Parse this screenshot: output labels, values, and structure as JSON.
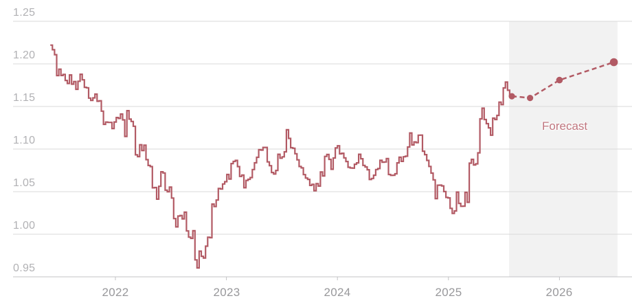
{
  "chart_data": {
    "type": "line",
    "description": "Exchange rate weekly history with forecast",
    "ylim": [
      0.95,
      1.25
    ],
    "xlim_years": [
      2021.41,
      2026.65
    ],
    "grid": true,
    "y_axis": {
      "min": 0.95,
      "max": 1.25,
      "tick_step": 0.05,
      "tick_labels": [
        "1.25",
        "1.20",
        "1.15",
        "1.10",
        "1.05",
        "1.00",
        "0.95"
      ]
    },
    "x_axis": {
      "tick_labels": [
        "2022",
        "2023",
        "2024",
        "2025",
        "2026"
      ],
      "tick_values": [
        2022,
        2023,
        2024,
        2025,
        2026
      ]
    },
    "series": [
      {
        "name": "historical-rate",
        "style": "step",
        "start_year": 2021.4136,
        "interval_years": 0.019157,
        "values": [
          1.222,
          1.2166,
          1.2108,
          1.1863,
          1.1938,
          1.1864,
          1.1877,
          1.1806,
          1.177,
          1.187,
          1.1762,
          1.1793,
          1.1702,
          1.1796,
          1.1878,
          1.1813,
          1.1725,
          1.1719,
          1.1598,
          1.1571,
          1.1601,
          1.1645,
          1.1561,
          1.1567,
          1.1445,
          1.129,
          1.1317,
          1.1313,
          1.1313,
          1.124,
          1.1318,
          1.137,
          1.136,
          1.1411,
          1.1343,
          1.1148,
          1.1451,
          1.1352,
          1.1324,
          1.1268,
          1.0932,
          1.0911,
          1.1051,
          1.0982,
          1.1046,
          1.0876,
          1.0807,
          1.0794,
          1.0545,
          1.0548,
          1.0412,
          1.0563,
          1.0733,
          1.0719,
          1.0518,
          1.0499,
          1.0553,
          1.0425,
          1.0184,
          1.0086,
          1.0214,
          1.022,
          1.0181,
          1.0259,
          1.0039,
          0.9966,
          0.9952,
          1.0041,
          0.9699,
          0.9605,
          0.9802,
          0.9741,
          0.9721,
          0.986,
          0.9965,
          0.996,
          1.0354,
          1.0325,
          1.0402,
          1.0537,
          1.0531,
          1.059,
          1.0617,
          1.0702,
          1.0648,
          1.083,
          1.0855,
          1.0867,
          1.0794,
          1.0679,
          1.0695,
          1.0546,
          1.0632,
          1.0645,
          1.0665,
          1.076,
          1.0839,
          1.0903,
          1.0993,
          1.0988,
          1.1019,
          1.1019,
          1.0849,
          1.0805,
          1.0725,
          1.0707,
          1.0749,
          1.0939,
          1.0893,
          1.0909,
          1.0968,
          1.1227,
          1.1125,
          1.1016,
          1.101,
          1.0945,
          1.0873,
          1.0795,
          1.0779,
          1.07,
          1.066,
          1.0644,
          1.0573,
          1.0586,
          1.0511,
          1.0594,
          1.0565,
          1.0731,
          1.0685,
          1.0914,
          1.0936,
          1.0879,
          1.0763,
          1.0895,
          1.1014,
          1.1039,
          1.0944,
          1.0951,
          1.0897,
          1.0854,
          1.0786,
          1.0778,
          1.0776,
          1.0822,
          1.0838,
          1.0939,
          1.0886,
          1.0808,
          1.079,
          1.0757,
          1.0643,
          1.0655,
          1.0693,
          1.076,
          1.0771,
          1.0868,
          1.0846,
          1.0848,
          1.0889,
          1.0702,
          1.0691,
          1.0693,
          1.071,
          1.0838,
          1.0904,
          1.0856,
          1.091,
          1.0916,
          1.1024,
          1.1189,
          1.1048,
          1.1084,
          1.1075,
          1.1163,
          1.1164,
          1.0975,
          1.0935,
          1.0867,
          1.0796,
          1.0718,
          1.0639,
          1.0418,
          1.0576,
          1.0577,
          1.0568,
          1.0501,
          1.0432,
          1.0427,
          1.0304,
          1.0244,
          1.0273,
          1.0495,
          1.0362,
          1.0328,
          1.033,
          1.0492,
          1.0375,
          1.0835,
          1.0879,
          1.0814,
          1.0827,
          1.0956,
          1.1355,
          1.148,
          1.1347,
          1.1298,
          1.1249,
          1.1163,
          1.1363,
          1.1347,
          1.1395,
          1.1551,
          1.1522,
          1.1718,
          1.1786,
          1.169,
          1.1627,
          1.162
        ]
      }
    ],
    "forecast": {
      "label": "Forecast",
      "region_years": {
        "start": 2025.546,
        "end": 2026.523
      },
      "points": [
        {
          "t": 2025.571,
          "v": 1.162
        },
        {
          "t": 2025.735,
          "v": 1.16
        },
        {
          "t": 2026.0,
          "v": 1.181
        },
        {
          "t": 2026.49,
          "v": 1.202
        }
      ]
    },
    "colors": {
      "line": "#b25a64",
      "grid": "#d9d9d9",
      "axis": "#c3c3c5",
      "shade": "#f2f2f2",
      "y_label": "#b1b1b4",
      "x_label": "#98989b",
      "forecast_text": "#c0767f",
      "background": "#ffffff"
    }
  }
}
